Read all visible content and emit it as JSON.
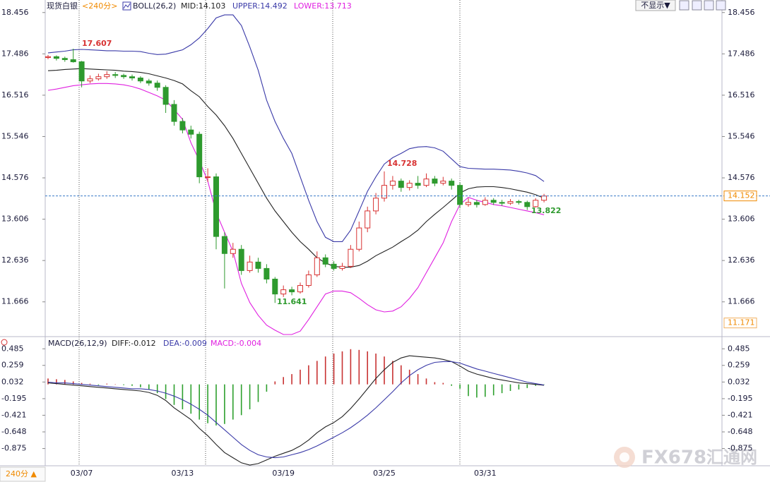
{
  "header": {
    "symbol": "现货白银",
    "period": "<240分>",
    "period_button": "240分 ▲",
    "display_toggle": "不显示▼"
  },
  "watermark": [
    "FX678",
    "汇通网"
  ],
  "chart_data": [
    {
      "type": "candlestick",
      "indicator": "BOLL(26,2)",
      "categories": [
        null,
        null,
        null,
        null,
        "03/07",
        null,
        null,
        null,
        null,
        null,
        null,
        null,
        null,
        null,
        null,
        null,
        "03/13",
        null,
        null,
        null,
        null,
        null,
        null,
        null,
        null,
        null,
        null,
        null,
        "03/19",
        null,
        null,
        null,
        null,
        null,
        null,
        null,
        null,
        null,
        null,
        null,
        "03/25",
        null,
        null,
        null,
        null,
        null,
        null,
        null,
        null,
        null,
        null,
        null,
        "03/31",
        null,
        null,
        null,
        null,
        null,
        null,
        null
      ],
      "ohlc": [
        [
          17.4,
          17.46,
          17.36,
          17.42
        ],
        [
          17.42,
          17.45,
          17.33,
          17.38
        ],
        [
          17.38,
          17.42,
          17.3,
          17.35
        ],
        [
          17.35,
          17.607,
          17.28,
          17.3
        ],
        [
          17.3,
          17.32,
          16.7,
          16.85
        ],
        [
          16.85,
          16.98,
          16.8,
          16.9
        ],
        [
          16.9,
          17.02,
          16.86,
          16.95
        ],
        [
          16.95,
          17.08,
          16.9,
          17.0
        ],
        [
          17.0,
          17.06,
          16.92,
          16.98
        ],
        [
          16.98,
          17.02,
          16.9,
          16.95
        ],
        [
          16.95,
          17.0,
          16.86,
          16.92
        ],
        [
          16.92,
          16.96,
          16.8,
          16.85
        ],
        [
          16.85,
          16.9,
          16.74,
          16.8
        ],
        [
          16.8,
          16.86,
          16.62,
          16.7
        ],
        [
          16.7,
          16.75,
          16.1,
          16.3
        ],
        [
          16.3,
          16.4,
          15.8,
          15.9
        ],
        [
          15.9,
          15.98,
          15.62,
          15.7
        ],
        [
          15.7,
          15.8,
          15.5,
          15.6
        ],
        [
          15.6,
          15.66,
          14.45,
          14.6
        ],
        [
          14.6,
          14.8,
          14.48,
          14.6
        ],
        [
          14.6,
          14.68,
          12.9,
          13.2
        ],
        [
          13.2,
          13.3,
          11.98,
          12.8
        ],
        [
          12.8,
          13.05,
          12.7,
          12.9
        ],
        [
          12.9,
          13.0,
          12.3,
          12.4
        ],
        [
          12.4,
          12.75,
          12.35,
          12.6
        ],
        [
          12.6,
          12.7,
          12.35,
          12.45
        ],
        [
          12.45,
          12.55,
          12.1,
          12.2
        ],
        [
          12.2,
          12.25,
          11.641,
          11.85
        ],
        [
          11.85,
          12.05,
          11.78,
          11.95
        ],
        [
          11.95,
          12.02,
          11.82,
          11.9
        ],
        [
          11.9,
          12.12,
          11.86,
          12.05
        ],
        [
          12.05,
          12.4,
          12.0,
          12.3
        ],
        [
          12.3,
          12.85,
          12.25,
          12.7
        ],
        [
          12.7,
          12.78,
          12.48,
          12.55
        ],
        [
          12.55,
          12.62,
          12.4,
          12.45
        ],
        [
          12.45,
          12.58,
          12.4,
          12.5
        ],
        [
          12.5,
          13.0,
          12.46,
          12.9
        ],
        [
          12.9,
          13.55,
          12.85,
          13.4
        ],
        [
          13.4,
          13.9,
          13.3,
          13.8
        ],
        [
          13.8,
          14.22,
          13.72,
          14.1
        ],
        [
          14.1,
          14.728,
          14.02,
          14.4
        ],
        [
          14.4,
          14.62,
          14.3,
          14.5
        ],
        [
          14.5,
          14.56,
          14.25,
          14.35
        ],
        [
          14.35,
          14.52,
          14.28,
          14.45
        ],
        [
          14.45,
          14.62,
          14.32,
          14.4
        ],
        [
          14.4,
          14.68,
          14.36,
          14.55
        ],
        [
          14.55,
          14.62,
          14.38,
          14.45
        ],
        [
          14.45,
          14.6,
          14.4,
          14.5
        ],
        [
          14.5,
          14.56,
          14.3,
          14.4
        ],
        [
          14.4,
          14.46,
          13.86,
          13.95
        ],
        [
          13.95,
          14.1,
          13.9,
          14.0
        ],
        [
          14.0,
          14.06,
          13.88,
          13.95
        ],
        [
          13.95,
          14.12,
          13.92,
          14.05
        ],
        [
          14.05,
          14.1,
          13.94,
          14.0
        ],
        [
          14.0,
          14.06,
          13.92,
          13.98
        ],
        [
          13.98,
          14.08,
          13.94,
          14.02
        ],
        [
          14.02,
          14.06,
          13.95,
          14.0
        ],
        [
          14.0,
          14.04,
          13.822,
          13.9
        ],
        [
          13.9,
          14.1,
          13.88,
          14.05
        ],
        [
          14.05,
          14.2,
          14.0,
          14.15
        ]
      ],
      "up_color": "#d83232",
      "down_color": "#2e9a2e",
      "series": [
        {
          "name": "MID:14.103",
          "color": "#222222",
          "values": [
            17.09,
            17.1,
            17.12,
            17.13,
            17.14,
            17.13,
            17.12,
            17.11,
            17.1,
            17.08,
            17.07,
            17.05,
            17.02,
            16.97,
            16.92,
            16.86,
            16.78,
            16.62,
            16.48,
            16.25,
            16.05,
            15.8,
            15.5,
            15.15,
            14.8,
            14.45,
            14.1,
            13.8,
            13.55,
            13.3,
            13.08,
            12.9,
            12.7,
            12.58,
            12.5,
            12.48,
            12.48,
            12.52,
            12.62,
            12.75,
            12.85,
            12.95,
            13.08,
            13.2,
            13.35,
            13.55,
            13.72,
            13.88,
            14.05,
            14.22,
            14.32,
            14.36,
            14.37,
            14.37,
            14.35,
            14.32,
            14.28,
            14.24,
            14.18,
            14.1
          ]
        },
        {
          "name": "UPPER:14.492",
          "color": "#3a3aa8",
          "values": [
            17.51,
            17.53,
            17.55,
            17.58,
            17.59,
            17.58,
            17.57,
            17.56,
            17.56,
            17.55,
            17.55,
            17.54,
            17.5,
            17.47,
            17.48,
            17.53,
            17.58,
            17.7,
            17.86,
            18.08,
            18.33,
            18.4,
            18.4,
            18.15,
            17.65,
            17.1,
            16.4,
            15.9,
            15.5,
            15.15,
            14.6,
            14.05,
            13.55,
            13.18,
            13.08,
            13.08,
            13.35,
            13.8,
            14.26,
            14.6,
            14.9,
            15.05,
            15.15,
            15.26,
            15.3,
            15.31,
            15.28,
            15.2,
            15.02,
            14.84,
            14.8,
            14.79,
            14.78,
            14.78,
            14.77,
            14.76,
            14.73,
            14.69,
            14.63,
            14.49
          ]
        },
        {
          "name": "LOWER:13.713",
          "color": "#e020e0",
          "values": [
            16.63,
            16.66,
            16.7,
            16.74,
            16.76,
            16.78,
            16.79,
            16.79,
            16.78,
            16.76,
            16.72,
            16.66,
            16.58,
            16.5,
            16.4,
            16.18,
            15.95,
            15.4,
            14.98,
            14.5,
            13.76,
            13.3,
            12.85,
            12.1,
            11.65,
            11.35,
            11.12,
            11.0,
            10.9,
            10.9,
            10.98,
            11.25,
            11.55,
            11.85,
            11.92,
            11.92,
            11.88,
            11.75,
            11.6,
            11.48,
            11.43,
            11.45,
            11.55,
            11.75,
            12.0,
            12.35,
            12.7,
            13.05,
            13.55,
            13.95,
            14.12,
            14.05,
            14.0,
            13.95,
            13.92,
            13.88,
            13.84,
            13.8,
            13.76,
            13.71
          ]
        }
      ],
      "annotations": [
        17.607,
        14.728,
        11.641,
        13.822
      ],
      "annotation_colors": [
        "#d83232",
        "#d83232",
        "#2e9a2e",
        "#2e9a2e"
      ],
      "last_price": 14.152,
      "low_label": 11.171,
      "ylim": [
        10.85,
        18.75
      ],
      "yticks": [
        18.456,
        17.486,
        16.516,
        15.546,
        14.576,
        13.606,
        12.636,
        11.666
      ]
    },
    {
      "type": "macd",
      "indicator": "MACD(26,12,9)",
      "series": [
        {
          "name": "DIFF:-0.012",
          "color": "#222222",
          "values": [
            0.02,
            0.01,
            0.0,
            -0.01,
            -0.02,
            -0.03,
            -0.04,
            -0.05,
            -0.06,
            -0.07,
            -0.08,
            -0.09,
            -0.11,
            -0.15,
            -0.22,
            -0.32,
            -0.4,
            -0.48,
            -0.6,
            -0.7,
            -0.82,
            -0.93,
            -1.0,
            -1.07,
            -1.1,
            -1.08,
            -1.03,
            -0.98,
            -0.94,
            -0.9,
            -0.84,
            -0.76,
            -0.66,
            -0.58,
            -0.52,
            -0.44,
            -0.33,
            -0.2,
            -0.06,
            0.08,
            0.2,
            0.3,
            0.36,
            0.39,
            0.38,
            0.37,
            0.36,
            0.34,
            0.31,
            0.25,
            0.18,
            0.14,
            0.11,
            0.08,
            0.06,
            0.04,
            0.02,
            0.01,
            0.0,
            -0.012
          ]
        },
        {
          "name": "DEA:-0.009",
          "color": "#3a3aa8",
          "values": [
            0.03,
            0.02,
            0.02,
            0.01,
            0.0,
            -0.01,
            -0.02,
            -0.03,
            -0.04,
            -0.05,
            -0.06,
            -0.06,
            -0.07,
            -0.09,
            -0.12,
            -0.16,
            -0.21,
            -0.27,
            -0.34,
            -0.42,
            -0.52,
            -0.62,
            -0.72,
            -0.82,
            -0.9,
            -0.96,
            -0.99,
            -1.0,
            -0.99,
            -0.96,
            -0.93,
            -0.89,
            -0.84,
            -0.78,
            -0.72,
            -0.66,
            -0.59,
            -0.51,
            -0.42,
            -0.32,
            -0.21,
            -0.1,
            0.02,
            0.12,
            0.2,
            0.26,
            0.3,
            0.31,
            0.31,
            0.29,
            0.25,
            0.21,
            0.18,
            0.15,
            0.12,
            0.09,
            0.06,
            0.03,
            0.01,
            -0.009
          ]
        }
      ],
      "histogram": {
        "name": "MACD:-0.004",
        "color": "#e020e0",
        "up_color": "#c83232",
        "down_color": "#2ea02e",
        "values": [
          0.08,
          0.07,
          0.06,
          0.04,
          0.02,
          0.01,
          -0.01,
          0.01,
          0.0,
          -0.01,
          -0.02,
          -0.04,
          -0.07,
          -0.12,
          -0.2,
          -0.28,
          -0.34,
          -0.4,
          -0.48,
          -0.53,
          -0.56,
          -0.54,
          -0.48,
          -0.42,
          -0.34,
          -0.24,
          -0.1,
          0.04,
          0.1,
          0.14,
          0.2,
          0.26,
          0.32,
          0.38,
          0.42,
          0.45,
          0.48,
          0.47,
          0.45,
          0.42,
          0.38,
          0.32,
          0.26,
          0.2,
          0.14,
          0.08,
          0.03,
          0.02,
          -0.02,
          -0.06,
          -0.16,
          -0.18,
          -0.17,
          -0.15,
          -0.12,
          -0.09,
          -0.07,
          -0.05,
          -0.02,
          -0.004
        ]
      },
      "ylim": [
        -1.11,
        0.651
      ],
      "yticks": [
        0.485,
        0.259,
        0.032,
        -0.195,
        -0.421,
        -0.648,
        -0.875
      ]
    }
  ]
}
